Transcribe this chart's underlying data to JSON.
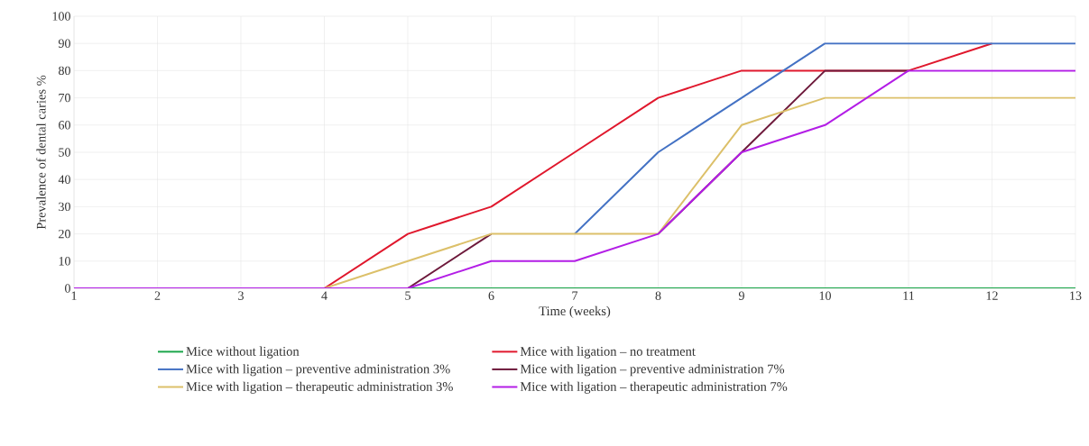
{
  "chart_data": {
    "type": "line",
    "xlabel": "Time (weeks)",
    "ylabel": "Prevalence of dental caries %",
    "x": [
      1,
      2,
      3,
      4,
      5,
      6,
      7,
      8,
      9,
      10,
      11,
      12,
      13
    ],
    "xlim": [
      1,
      13
    ],
    "xticks": [
      1,
      2,
      3,
      4,
      5,
      6,
      7,
      8,
      9,
      10,
      11,
      12,
      13
    ],
    "ylim": [
      0,
      100
    ],
    "yticks": [
      0,
      10,
      20,
      30,
      40,
      50,
      60,
      70,
      80,
      90,
      100
    ],
    "grid": true,
    "legend": "bottom",
    "marker": "none",
    "line_style": "solid",
    "series": [
      {
        "name": "Mice without ligation",
        "color": "#1aa64a",
        "values": [
          null,
          null,
          null,
          null,
          0,
          0,
          0,
          0,
          0,
          0,
          0,
          0,
          0
        ]
      },
      {
        "name": "Mice with ligation – no treatment",
        "color": "#e0182d",
        "values": [
          null,
          null,
          null,
          0,
          20,
          30,
          50,
          70,
          80,
          80,
          80,
          90,
          null
        ]
      },
      {
        "name": "Mice with ligation – preventive administration 3%",
        "color": "#4472c4",
        "values": [
          null,
          null,
          null,
          null,
          null,
          null,
          20,
          50,
          70,
          90,
          90,
          90,
          90
        ]
      },
      {
        "name": "Mice with ligation – preventive administration 7%",
        "color": "#6e1a3c",
        "values": [
          null,
          null,
          null,
          null,
          0,
          20,
          null,
          20,
          50,
          80,
          80,
          null,
          null
        ]
      },
      {
        "name": "Mice with ligation – therapeutic administration 3%",
        "color": "#dcc06a",
        "values": [
          null,
          null,
          null,
          0,
          10,
          20,
          20,
          20,
          60,
          70,
          70,
          70,
          70
        ]
      },
      {
        "name": "Mice with ligation – therapeutic administration 7%",
        "color": "#b31ee6",
        "values": [
          0,
          0,
          0,
          0,
          0,
          10,
          10,
          20,
          50,
          60,
          80,
          80,
          80
        ]
      }
    ]
  }
}
